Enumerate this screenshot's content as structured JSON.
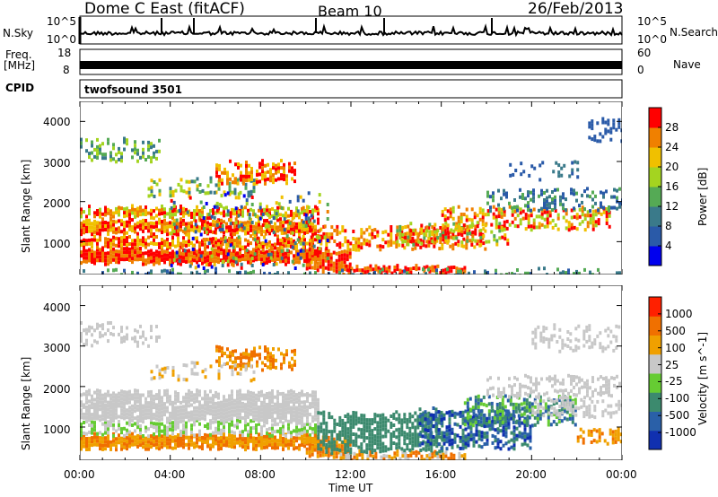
{
  "header": {
    "title": "Dome C East (fitACF)",
    "beam": "Beam 10",
    "date": "26/Feb/2013"
  },
  "status_panels": {
    "nsky_label": "N.Sky",
    "nsky_ticks": [
      "10^5",
      "10^0"
    ],
    "nsearch_label": "N.Search",
    "nsearch_ticks": [
      "10^5",
      "10^0"
    ],
    "freq_label": "Freq.",
    "freq_unit": "[MHz]",
    "freq_ticks": [
      "18",
      "8"
    ],
    "nave_label": "Nave",
    "nave_ticks": [
      "60",
      "0"
    ],
    "cpid_label": "CPID",
    "cpid_value": "twofsound 3501"
  },
  "chart_data": [
    {
      "type": "heatmap",
      "name": "power",
      "ylabel": "Slant Range [km]",
      "yticks": [
        "4000",
        "3000",
        "2000",
        "1000"
      ],
      "ylim": [
        180,
        4500
      ],
      "colorbar_label": "Power [dB]",
      "colorbar_ticks": [
        "28",
        "24",
        "20",
        "16",
        "12",
        "8",
        "4"
      ],
      "colors": [
        "#0000ee",
        "#2a5aa8",
        "#3a7a8a",
        "#55aa55",
        "#a4d420",
        "#f0c000",
        "#f08000",
        "#ff0000"
      ]
    },
    {
      "type": "heatmap",
      "name": "velocity",
      "ylabel": "Slant Range [km]",
      "yticks": [
        "4000",
        "3000",
        "2000",
        "1000"
      ],
      "ylim": [
        180,
        4500
      ],
      "colorbar_label": "Velocity [m s^-1]",
      "colorbar_ticks": [
        "1000",
        "500",
        "100",
        "25",
        "-25",
        "-100",
        "-500",
        "-1000"
      ],
      "colors": [
        "#1030b0",
        "#2a60a8",
        "#3c8a6e",
        "#66cc33",
        "#c8c8c8",
        "#f0a000",
        "#f07000",
        "#ff2000"
      ]
    }
  ],
  "xaxis": {
    "label": "Time UT",
    "ticks": [
      "00:00",
      "04:00",
      "08:00",
      "12:00",
      "16:00",
      "20:00",
      "00:00"
    ]
  }
}
